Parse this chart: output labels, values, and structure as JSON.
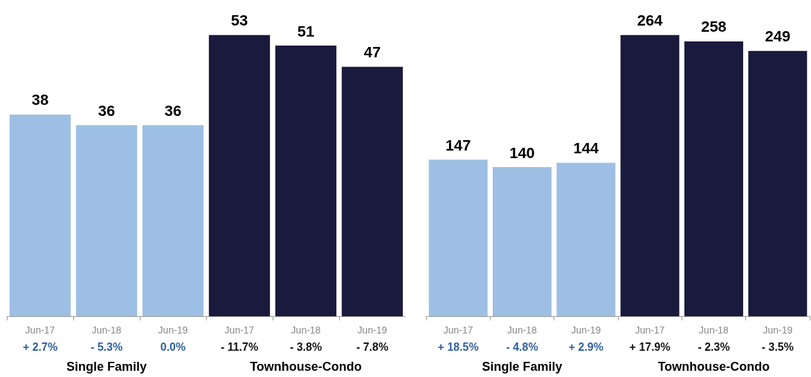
{
  "chart_data": [
    {
      "type": "bar",
      "categories": [
        "Jun-17",
        "Jun-18",
        "Jun-19",
        "Jun-17",
        "Jun-18",
        "Jun-19"
      ],
      "values": [
        38,
        36,
        36,
        53,
        51,
        47
      ],
      "colors": [
        "#9dbfe3",
        "#9dbfe3",
        "#9dbfe3",
        "#1a1a3c",
        "#1a1a3c",
        "#1a1a3c"
      ],
      "data_labels": true,
      "annotations": [
        "+ 2.7%",
        "- 5.3%",
        "0.0%",
        "- 11.7%",
        "- 3.8%",
        "- 7.8%",
        "Single Family",
        "Townhouse-Condo"
      ]
    },
    {
      "type": "bar",
      "categories": [
        "Jun-17",
        "Jun-18",
        "Jun-19",
        "Jun-17",
        "Jun-18",
        "Jun-19"
      ],
      "values": [
        147,
        140,
        144,
        264,
        258,
        249
      ],
      "colors": [
        "#9dbfe3",
        "#9dbfe3",
        "#9dbfe3",
        "#1a1a3c",
        "#1a1a3c",
        "#1a1a3c"
      ],
      "data_labels": true,
      "annotations": [
        "+ 18.5%",
        "- 4.8%",
        "+ 2.9%",
        "+ 17.9%",
        "- 2.3%",
        "- 3.5%",
        "Single Family",
        "Townhouse-Condo"
      ]
    }
  ]
}
